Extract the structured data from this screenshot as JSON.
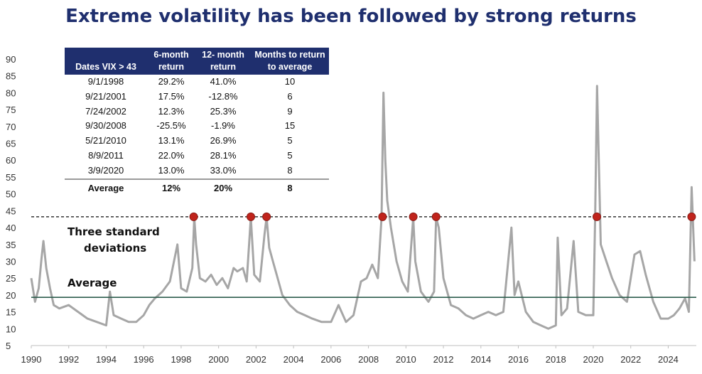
{
  "title": "Extreme volatility has been followed by strong returns",
  "annotations": {
    "three_sd": "Three standard",
    "three_sd_2": "deviations",
    "average": "Average"
  },
  "table": {
    "headers": [
      {
        "line1": "",
        "line2": "Dates VIX > 43"
      },
      {
        "line1": "6-month",
        "line2": "return"
      },
      {
        "line1": "12- month",
        "line2": "return"
      },
      {
        "line1": "Months to return",
        "line2": "to average"
      }
    ],
    "rows": [
      [
        "9/1/1998",
        "29.2%",
        "41.0%",
        "10"
      ],
      [
        "9/21/2001",
        "17.5%",
        "-12.8%",
        "6"
      ],
      [
        "7/24/2002",
        "12.3%",
        "25.3%",
        "9"
      ],
      [
        "9/30/2008",
        "-25.5%",
        "-1.9%",
        "15"
      ],
      [
        "5/21/2010",
        "13.1%",
        "26.9%",
        "5"
      ],
      [
        "8/9/2011",
        "22.0%",
        "28.1%",
        "5"
      ],
      [
        "3/9/2020",
        "13.0%",
        "33.0%",
        "8"
      ]
    ],
    "footer": [
      "Average",
      "12%",
      "20%",
      "8"
    ]
  },
  "colors": {
    "title": "#1f2f6e",
    "line": "#a6a6a6",
    "average_line": "#2e5e4e",
    "threshold_line": "#333333",
    "marker": "#c0241c",
    "table_header": "#1f2f6e"
  },
  "chart_data": {
    "type": "line",
    "title": "Extreme volatility has been followed by strong returns",
    "xlabel": "",
    "ylabel": "",
    "xlim": [
      1990,
      2025.5
    ],
    "ylim": [
      5,
      90
    ],
    "x_ticks": [
      1990,
      1992,
      1994,
      1996,
      1998,
      2000,
      2002,
      2004,
      2006,
      2008,
      2010,
      2012,
      2014,
      2016,
      2018,
      2020,
      2022,
      2024
    ],
    "y_ticks": [
      5,
      10,
      15,
      20,
      25,
      30,
      35,
      40,
      45,
      50,
      55,
      60,
      65,
      70,
      75,
      80,
      85,
      90
    ],
    "grid": false,
    "series": [
      {
        "x": [
          1990.0,
          1990.2,
          1990.4,
          1990.55,
          1990.65,
          1990.8,
          1991.0,
          1991.2,
          1991.5,
          1992.0,
          1992.5,
          1993.0,
          1993.5,
          1994.0,
          1994.2,
          1994.4,
          1994.8,
          1995.2,
          1995.6,
          1996.0,
          1996.3,
          1996.6,
          1997.0,
          1997.4,
          1997.8,
          1998.0,
          1998.3,
          1998.6,
          1998.7,
          1998.8,
          1999.0,
          1999.3,
          1999.6,
          1999.9,
          2000.2,
          2000.5,
          2000.8,
          2001.0,
          2001.3,
          2001.5,
          2001.72,
          2001.9,
          2002.2,
          2002.45,
          2002.56,
          2002.7,
          2002.9,
          2003.1,
          2003.4,
          2003.8,
          2004.2,
          2004.6,
          2005.0,
          2005.5,
          2006.0,
          2006.4,
          2006.8,
          2007.2,
          2007.6,
          2007.9,
          2008.2,
          2008.5,
          2008.7,
          2008.8,
          2008.9,
          2009.0,
          2009.2,
          2009.5,
          2009.8,
          2010.1,
          2010.39,
          2010.5,
          2010.8,
          2011.2,
          2011.5,
          2011.61,
          2011.75,
          2012.0,
          2012.4,
          2012.8,
          2013.2,
          2013.6,
          2014.0,
          2014.4,
          2014.8,
          2015.2,
          2015.63,
          2015.8,
          2016.0,
          2016.4,
          2016.8,
          2017.2,
          2017.6,
          2018.0,
          2018.1,
          2018.3,
          2018.6,
          2018.95,
          2019.2,
          2019.6,
          2020.0,
          2020.1,
          2020.2,
          2020.4,
          2020.7,
          2021.0,
          2021.4,
          2021.8,
          2022.2,
          2022.5,
          2022.8,
          2023.2,
          2023.6,
          2024.0,
          2024.3,
          2024.6,
          2024.9,
          2025.1,
          2025.25,
          2025.4
        ],
        "y": [
          25,
          18,
          22,
          31,
          36,
          28,
          22,
          17,
          16,
          17,
          15,
          13,
          12,
          11,
          21,
          14,
          13,
          12,
          12,
          14,
          17,
          19,
          21,
          24,
          35,
          22,
          21,
          28,
          43,
          35,
          25,
          24,
          26,
          23,
          25,
          22,
          28,
          27,
          28,
          24,
          43,
          26,
          24,
          38,
          43,
          34,
          30,
          26,
          20,
          17,
          15,
          14,
          13,
          12,
          12,
          17,
          12,
          14,
          24,
          25,
          29,
          25,
          43,
          80,
          60,
          48,
          40,
          30,
          24,
          21,
          43,
          30,
          21,
          18,
          21,
          43,
          40,
          25,
          17,
          16,
          14,
          13,
          14,
          15,
          14,
          15,
          40,
          20,
          24,
          15,
          12,
          11,
          10,
          11,
          37,
          14,
          16,
          36,
          15,
          14,
          14,
          43,
          82,
          35,
          30,
          25,
          20,
          18,
          32,
          33,
          26,
          18,
          13,
          13,
          14,
          16,
          19,
          15,
          52,
          30
        ]
      }
    ],
    "reference_lines": [
      {
        "value": 19.3,
        "style": "solid"
      },
      {
        "value": 43.2,
        "style": "dashed"
      }
    ],
    "markers": {
      "x": [
        1998.67,
        2001.72,
        2002.56,
        2008.75,
        2010.39,
        2011.61,
        2020.19,
        2025.25
      ],
      "y": [
        43.2,
        43.2,
        43.2,
        43.2,
        43.2,
        43.2,
        43.2,
        43.2
      ]
    }
  }
}
